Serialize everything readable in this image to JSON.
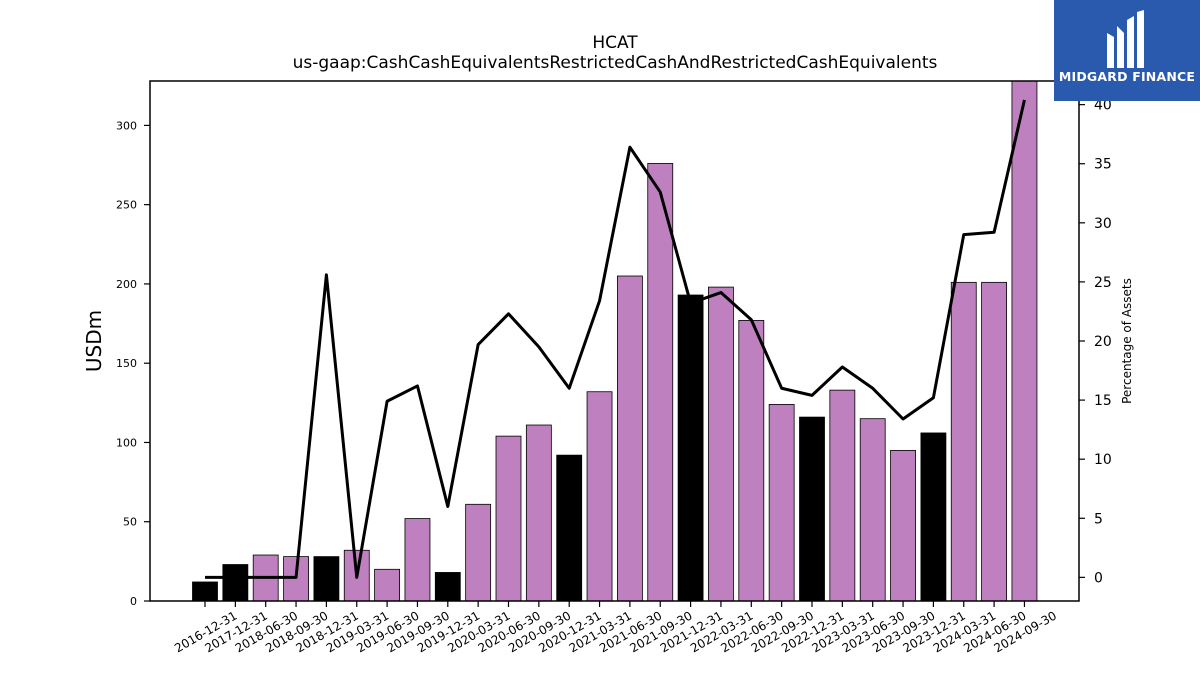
{
  "brand": {
    "name": "MIDGARD FINANCE",
    "bg_color": "#2a5aad"
  },
  "colors": {
    "annual_bar": "#000000",
    "quarter_bar": "#bf80bf",
    "line": "#000000"
  },
  "chart_data": {
    "type": "bar",
    "title": "HCAT",
    "subtitle": "us-gaap:CashCashEquivalentsRestrictedCashAndRestrictedCashEquivalents",
    "ylabel": "USDm",
    "y2label": "Percentage of Assets",
    "ylim": [
      0,
      328
    ],
    "y2lim": [
      -2,
      42
    ],
    "yticks": [
      0,
      50,
      100,
      150,
      200,
      250,
      300
    ],
    "y2ticks": [
      0,
      5,
      10,
      15,
      20,
      25,
      30,
      35,
      40
    ],
    "categories": [
      "2016-12-31",
      "2017-12-31",
      "2018-06-30",
      "2018-09-30",
      "2018-12-31",
      "2019-03-31",
      "2019-06-30",
      "2019-09-30",
      "2019-12-31",
      "2020-03-31",
      "2020-06-30",
      "2020-09-30",
      "2020-12-31",
      "2021-03-31",
      "2021-06-30",
      "2021-09-30",
      "2021-12-31",
      "2022-03-31",
      "2022-06-30",
      "2022-09-30",
      "2022-12-31",
      "2023-03-31",
      "2023-06-30",
      "2023-09-30",
      "2023-12-31",
      "2024-03-31",
      "2024-06-30",
      "2024-09-30"
    ],
    "series": [
      {
        "kind": "bar",
        "values": [
          12,
          23,
          29,
          28,
          28,
          32,
          20,
          52,
          18,
          61,
          104,
          111,
          92,
          132,
          205,
          276,
          193,
          198,
          177,
          124,
          116,
          133,
          115,
          95,
          106,
          201,
          201,
          328
        ],
        "period_type": [
          "annual",
          "annual",
          "quarter",
          "quarter",
          "annual",
          "quarter",
          "quarter",
          "quarter",
          "annual",
          "quarter",
          "quarter",
          "quarter",
          "annual",
          "quarter",
          "quarter",
          "quarter",
          "annual",
          "quarter",
          "quarter",
          "quarter",
          "annual",
          "quarter",
          "quarter",
          "quarter",
          "annual",
          "quarter",
          "quarter",
          "quarter"
        ]
      },
      {
        "kind": "line",
        "axis": "right",
        "values": [
          0,
          0,
          0,
          0,
          25.6,
          0,
          14.9,
          16.2,
          6.0,
          19.7,
          22.3,
          19.5,
          16.0,
          23.4,
          36.4,
          32.6,
          23.2,
          24.1,
          21.8,
          16.0,
          15.4,
          17.8,
          16.0,
          13.4,
          15.2,
          29.0,
          29.2,
          40.4
        ]
      }
    ],
    "legend": "none",
    "grid": false
  }
}
